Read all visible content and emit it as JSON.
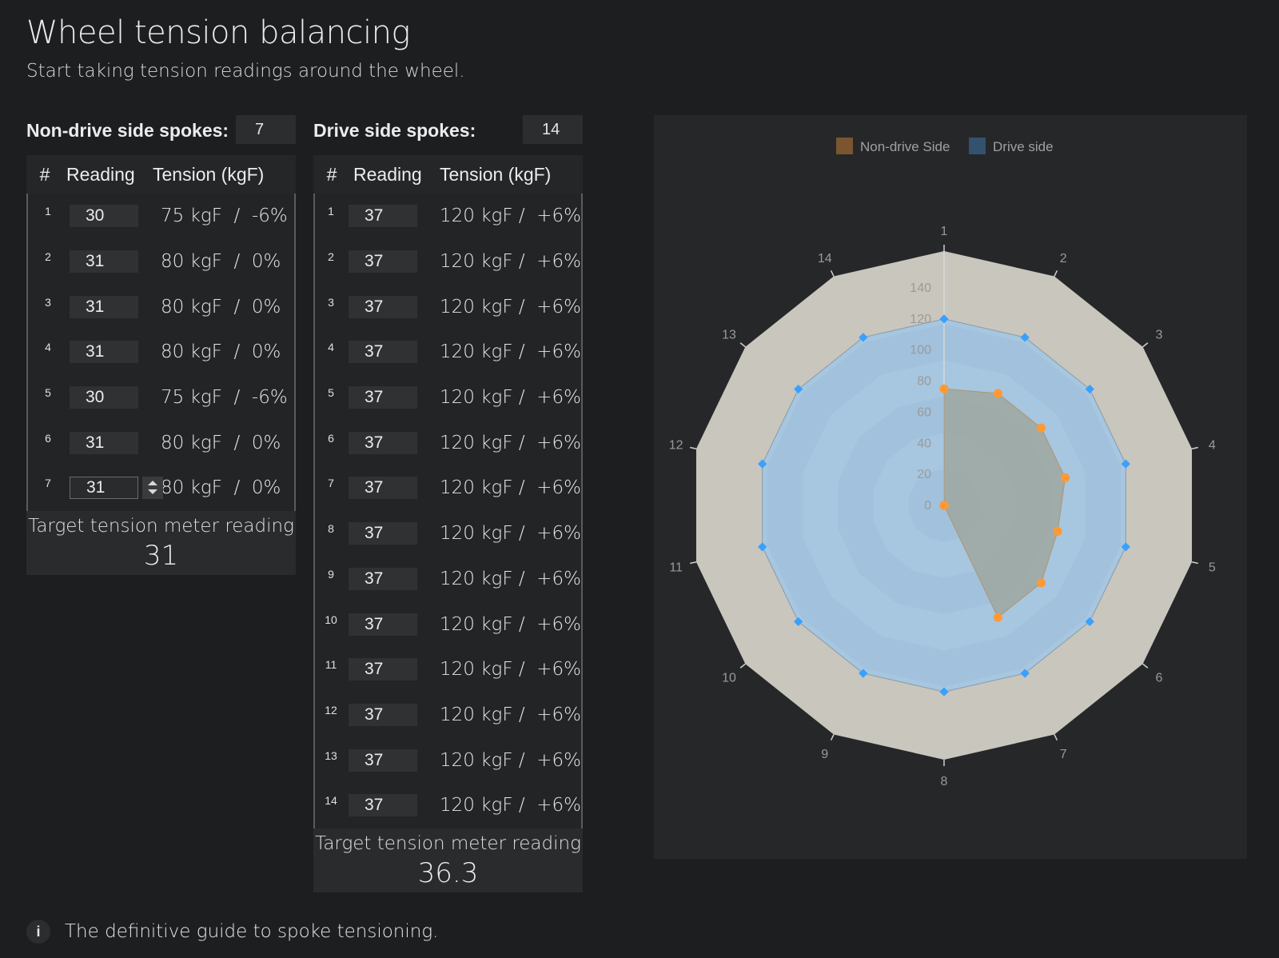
{
  "page": {
    "title": "Wheel tension balancing",
    "subtitle": "Start taking tension readings around the wheel."
  },
  "non_drive": {
    "count_label": "Non-drive side spokes:",
    "count_value": "7",
    "headers": {
      "num": "#",
      "reading": "Reading",
      "tension": "Tension (kgF)"
    },
    "rows": [
      {
        "num": "1",
        "reading": "30",
        "tension": "75 kgF  /  -6%"
      },
      {
        "num": "2",
        "reading": "31",
        "tension": "80 kgF  /  0%"
      },
      {
        "num": "3",
        "reading": "31",
        "tension": "80 kgF  /  0%"
      },
      {
        "num": "4",
        "reading": "31",
        "tension": "80 kgF  /  0%"
      },
      {
        "num": "5",
        "reading": "30",
        "tension": "75 kgF  /  -6%"
      },
      {
        "num": "6",
        "reading": "31",
        "tension": "80 kgF  /  0%"
      },
      {
        "num": "7",
        "reading": "31",
        "tension": "80 kgF  /  0%"
      }
    ],
    "target_label": "Target tension meter reading",
    "target_value": "31"
  },
  "drive": {
    "count_label": "Drive side spokes:",
    "count_value": "14",
    "headers": {
      "num": "#",
      "reading": "Reading",
      "tension": "Tension (kgF)"
    },
    "rows": [
      {
        "num": "1",
        "reading": "37",
        "tension": "120 kgF /  +6%"
      },
      {
        "num": "2",
        "reading": "37",
        "tension": "120 kgF /  +6%"
      },
      {
        "num": "3",
        "reading": "37",
        "tension": "120 kgF /  +6%"
      },
      {
        "num": "4",
        "reading": "37",
        "tension": "120 kgF /  +6%"
      },
      {
        "num": "5",
        "reading": "37",
        "tension": "120 kgF /  +6%"
      },
      {
        "num": "6",
        "reading": "37",
        "tension": "120 kgF /  +6%"
      },
      {
        "num": "7",
        "reading": "37",
        "tension": "120 kgF /  +6%"
      },
      {
        "num": "8",
        "reading": "37",
        "tension": "120 kgF /  +6%"
      },
      {
        "num": "9",
        "reading": "37",
        "tension": "120 kgF /  +6%"
      },
      {
        "num": "10",
        "reading": "37",
        "tension": "120 kgF /  +6%"
      },
      {
        "num": "11",
        "reading": "37",
        "tension": "120 kgF /  +6%"
      },
      {
        "num": "12",
        "reading": "37",
        "tension": "120 kgF /  +6%"
      },
      {
        "num": "13",
        "reading": "37",
        "tension": "120 kgF /  +6%"
      },
      {
        "num": "14",
        "reading": "37",
        "tension": "120 kgF /  +6%"
      }
    ],
    "target_label": "Target tension meter reading",
    "target_value": "36.3"
  },
  "chart_data": {
    "type": "radar",
    "categories": [
      "1",
      "2",
      "3",
      "4",
      "5",
      "6",
      "7",
      "8",
      "9",
      "10",
      "11",
      "12",
      "13",
      "14"
    ],
    "radial_ticks": [
      0,
      20,
      40,
      60,
      80,
      100,
      120,
      140
    ],
    "rlim": [
      0,
      140
    ],
    "legend_position": "top-center",
    "series": [
      {
        "name": "Non-drive Side",
        "color": "#ff9933",
        "legend_color": "#7a5530",
        "values": [
          75,
          80,
          80,
          80,
          75,
          80,
          80,
          0,
          0,
          0,
          0,
          0,
          0,
          0
        ]
      },
      {
        "name": "Drive side",
        "color": "#3aa0ff",
        "legend_color": "#34516e",
        "values": [
          120,
          120,
          120,
          120,
          120,
          120,
          120,
          120,
          120,
          120,
          120,
          120,
          120,
          120
        ]
      }
    ],
    "colors": {
      "outer_band": "#c9c6bd",
      "drive_fill": "#a7c6e0",
      "nondrive_fill": "#9ea9a3",
      "panel_bg": "#262729",
      "label": "#9a9a9a"
    }
  },
  "footer": {
    "icon": "info-icon",
    "icon_glyph": "i",
    "link_text": "The definitive guide to spoke tensioning."
  }
}
